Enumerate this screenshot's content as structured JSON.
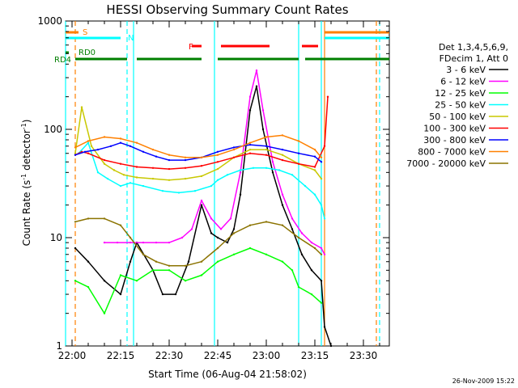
{
  "chart_data": {
    "type": "line",
    "title": "HESSI Observing Summary Count Rates",
    "xlabel": "Start Time (06-Aug-04 21:58:02)",
    "ylabel": "Count Rate (s⁻¹ detector⁻¹)",
    "ylabel_main": "Count Rate (s",
    "ylabel_sup1": "-1",
    "ylabel_mid": " detector",
    "ylabel_sup2": "-1",
    "ylabel_end": ")",
    "y_scale": "log",
    "ylim": [
      1,
      1000
    ],
    "xlim": [
      "21:58",
      "23:38"
    ],
    "x_ticks": [
      "22:00",
      "22:15",
      "22:30",
      "22:45",
      "23:00",
      "23:15",
      "23:30"
    ],
    "y_ticks": [
      "1",
      "10",
      "100",
      "1000"
    ],
    "legend_header": [
      "Det 1,3,4,5,6,9,",
      "FDecim 1, Att 0"
    ],
    "footer_date": "26-Nov-2009 15:22",
    "series": [
      {
        "name": "3 - 6 keV",
        "color": "#000000",
        "x": [
          "22:01",
          "22:05",
          "22:10",
          "22:15",
          "22:18",
          "22:20",
          "22:25",
          "22:28",
          "22:32",
          "22:36",
          "22:40",
          "22:43",
          "22:45",
          "22:48",
          "22:50",
          "22:52",
          "22:55",
          "22:57",
          "22:59",
          "23:02",
          "23:05",
          "23:08",
          "23:11",
          "23:14",
          "23:17",
          "23:18",
          "23:20"
        ],
        "y": [
          8,
          6,
          4,
          3,
          6,
          9,
          5,
          3,
          3,
          6,
          20,
          11,
          10,
          9,
          12,
          25,
          150,
          250,
          100,
          40,
          20,
          12,
          7,
          5,
          4,
          1.5,
          1
        ]
      },
      {
        "name": "6 - 12 keV",
        "color": "#ff00ff",
        "x": [
          "22:10",
          "22:14",
          "22:18",
          "22:22",
          "22:26",
          "22:30",
          "22:34",
          "22:37",
          "22:40",
          "22:43",
          "22:46",
          "22:49",
          "22:52",
          "22:55",
          "22:57",
          "22:59",
          "23:02",
          "23:05",
          "23:08",
          "23:11",
          "23:14",
          "23:17",
          "23:18"
        ],
        "y": [
          9,
          9,
          9,
          9,
          9,
          9,
          10,
          12,
          22,
          15,
          12,
          15,
          40,
          200,
          350,
          150,
          50,
          25,
          15,
          11,
          9,
          8,
          7
        ]
      },
      {
        "name": "12 - 25 keV",
        "color": "#00ff00",
        "x": [
          "22:01",
          "22:05",
          "22:10",
          "22:15",
          "22:20",
          "22:25",
          "22:30",
          "22:35",
          "22:40",
          "22:45",
          "22:50",
          "22:55",
          "23:00",
          "23:05",
          "23:08",
          "23:10",
          "23:14",
          "23:17"
        ],
        "y": [
          4,
          3.5,
          2,
          4.5,
          4,
          5,
          5,
          4,
          4.5,
          6,
          7,
          8,
          7,
          6,
          5,
          3.5,
          3,
          2.5
        ]
      },
      {
        "name": "25 - 50 keV",
        "color": "#00ffff",
        "x": [
          "22:02",
          "22:05",
          "22:08",
          "22:11",
          "22:15",
          "22:18",
          "22:22",
          "22:28",
          "22:33",
          "22:38",
          "22:43",
          "22:45",
          "22:48",
          "22:52",
          "22:56",
          "23:00",
          "23:04",
          "23:08",
          "23:12",
          "23:15",
          "23:17",
          "23:18"
        ],
        "y": [
          60,
          75,
          40,
          35,
          30,
          32,
          30,
          27,
          26,
          27,
          30,
          34,
          38,
          42,
          44,
          44,
          42,
          38,
          30,
          25,
          20,
          15
        ]
      },
      {
        "name": "50 - 100 keV",
        "color": "#c8c800",
        "x": [
          "22:01",
          "22:03",
          "22:06",
          "22:10",
          "22:13",
          "22:16",
          "22:20",
          "22:25",
          "22:30",
          "22:35",
          "22:40",
          "22:45",
          "22:50",
          "22:55",
          "23:00",
          "23:05",
          "23:10",
          "23:15",
          "23:17"
        ],
        "y": [
          60,
          160,
          70,
          48,
          42,
          38,
          36,
          35,
          34,
          35,
          37,
          43,
          55,
          65,
          65,
          58,
          48,
          42,
          35
        ]
      },
      {
        "name": "100 - 300 keV",
        "color": "#ff0000",
        "x": [
          "22:01",
          "22:03",
          "22:05",
          "22:10",
          "22:15",
          "22:20",
          "22:25",
          "22:30",
          "22:35",
          "22:40",
          "22:45",
          "22:50",
          "22:55",
          "23:00",
          "23:05",
          "23:10",
          "23:15",
          "23:18",
          "23:19"
        ],
        "y": [
          58,
          62,
          60,
          52,
          48,
          45,
          44,
          43,
          44,
          46,
          50,
          55,
          60,
          58,
          52,
          48,
          45,
          70,
          200
        ]
      },
      {
        "name": "300 - 800 keV",
        "color": "#0000ff",
        "x": [
          "22:01",
          "22:04",
          "22:08",
          "22:12",
          "22:15",
          "22:18",
          "22:22",
          "22:26",
          "22:30",
          "22:35",
          "22:40",
          "22:45",
          "22:50",
          "22:55",
          "23:00",
          "23:05",
          "23:10",
          "23:15",
          "23:17"
        ],
        "y": [
          58,
          62,
          65,
          70,
          75,
          70,
          62,
          56,
          52,
          52,
          55,
          62,
          68,
          72,
          70,
          65,
          60,
          56,
          50
        ]
      },
      {
        "name": "800 - 7000 keV",
        "color": "#ff8000",
        "x": [
          "22:01",
          "22:05",
          "22:10",
          "22:15",
          "22:20",
          "22:25",
          "22:30",
          "22:35",
          "22:40",
          "22:45",
          "22:50",
          "22:55",
          "23:00",
          "23:05",
          "23:10",
          "23:15",
          "23:17"
        ],
        "y": [
          68,
          78,
          85,
          82,
          75,
          65,
          58,
          55,
          55,
          58,
          65,
          75,
          85,
          88,
          78,
          65,
          55
        ]
      },
      {
        "name": "7000 - 20000 keV",
        "color": "#8b7300",
        "x": [
          "22:01",
          "22:05",
          "22:10",
          "22:15",
          "22:18",
          "22:22",
          "22:26",
          "22:30",
          "22:35",
          "22:40",
          "22:45",
          "22:50",
          "22:55",
          "23:00",
          "23:05",
          "23:10",
          "23:15",
          "23:17"
        ],
        "y": [
          14,
          15,
          15,
          13,
          10,
          7,
          6,
          5.5,
          5.5,
          6,
          8,
          11,
          13,
          14,
          13,
          10,
          8,
          7
        ]
      }
    ],
    "flags": [
      {
        "label": "S",
        "color": "#ff8000",
        "segments": [
          [
            "21:58",
            "22:02"
          ],
          [
            "23:18",
            "23:38"
          ]
        ]
      },
      {
        "label": "N",
        "color": "#00ffff",
        "segments": [
          [
            "21:58",
            "22:15"
          ],
          [
            "23:18",
            "23:38"
          ]
        ]
      },
      {
        "label": "F",
        "color": "#ff0000",
        "segments": [
          [
            "22:37",
            "22:40"
          ],
          [
            "22:46",
            "23:01"
          ],
          [
            "23:11",
            "23:16"
          ]
        ]
      },
      {
        "label": "RD0",
        "color": "#007f00",
        "segments": [
          [
            "21:58",
            "21:59"
          ]
        ]
      },
      {
        "label": "RD4",
        "color": "#007f00",
        "segments": [
          [
            "22:01",
            "22:17"
          ],
          [
            "22:20",
            "22:40"
          ],
          [
            "22:45",
            "23:10"
          ],
          [
            "23:12",
            "23:38"
          ]
        ]
      }
    ],
    "vlines": [
      {
        "x": "21:58",
        "color": "#00ffff",
        "dashed": false
      },
      {
        "x": "22:01",
        "color": "#ff8000",
        "dashed": true
      },
      {
        "x": "22:17",
        "color": "#00ffff",
        "dashed": true
      },
      {
        "x": "22:19",
        "color": "#00ffff",
        "dashed": false
      },
      {
        "x": "22:44",
        "color": "#00ffff",
        "dashed": false
      },
      {
        "x": "23:10",
        "color": "#00ffff",
        "dashed": false
      },
      {
        "x": "23:17",
        "color": "#00ffff",
        "dashed": false
      },
      {
        "x": "23:18",
        "color": "#ff8000",
        "dashed": false
      },
      {
        "x": "23:34",
        "color": "#ff8000",
        "dashed": true
      },
      {
        "x": "23:35",
        "color": "#00ffff",
        "dashed": true
      }
    ]
  }
}
